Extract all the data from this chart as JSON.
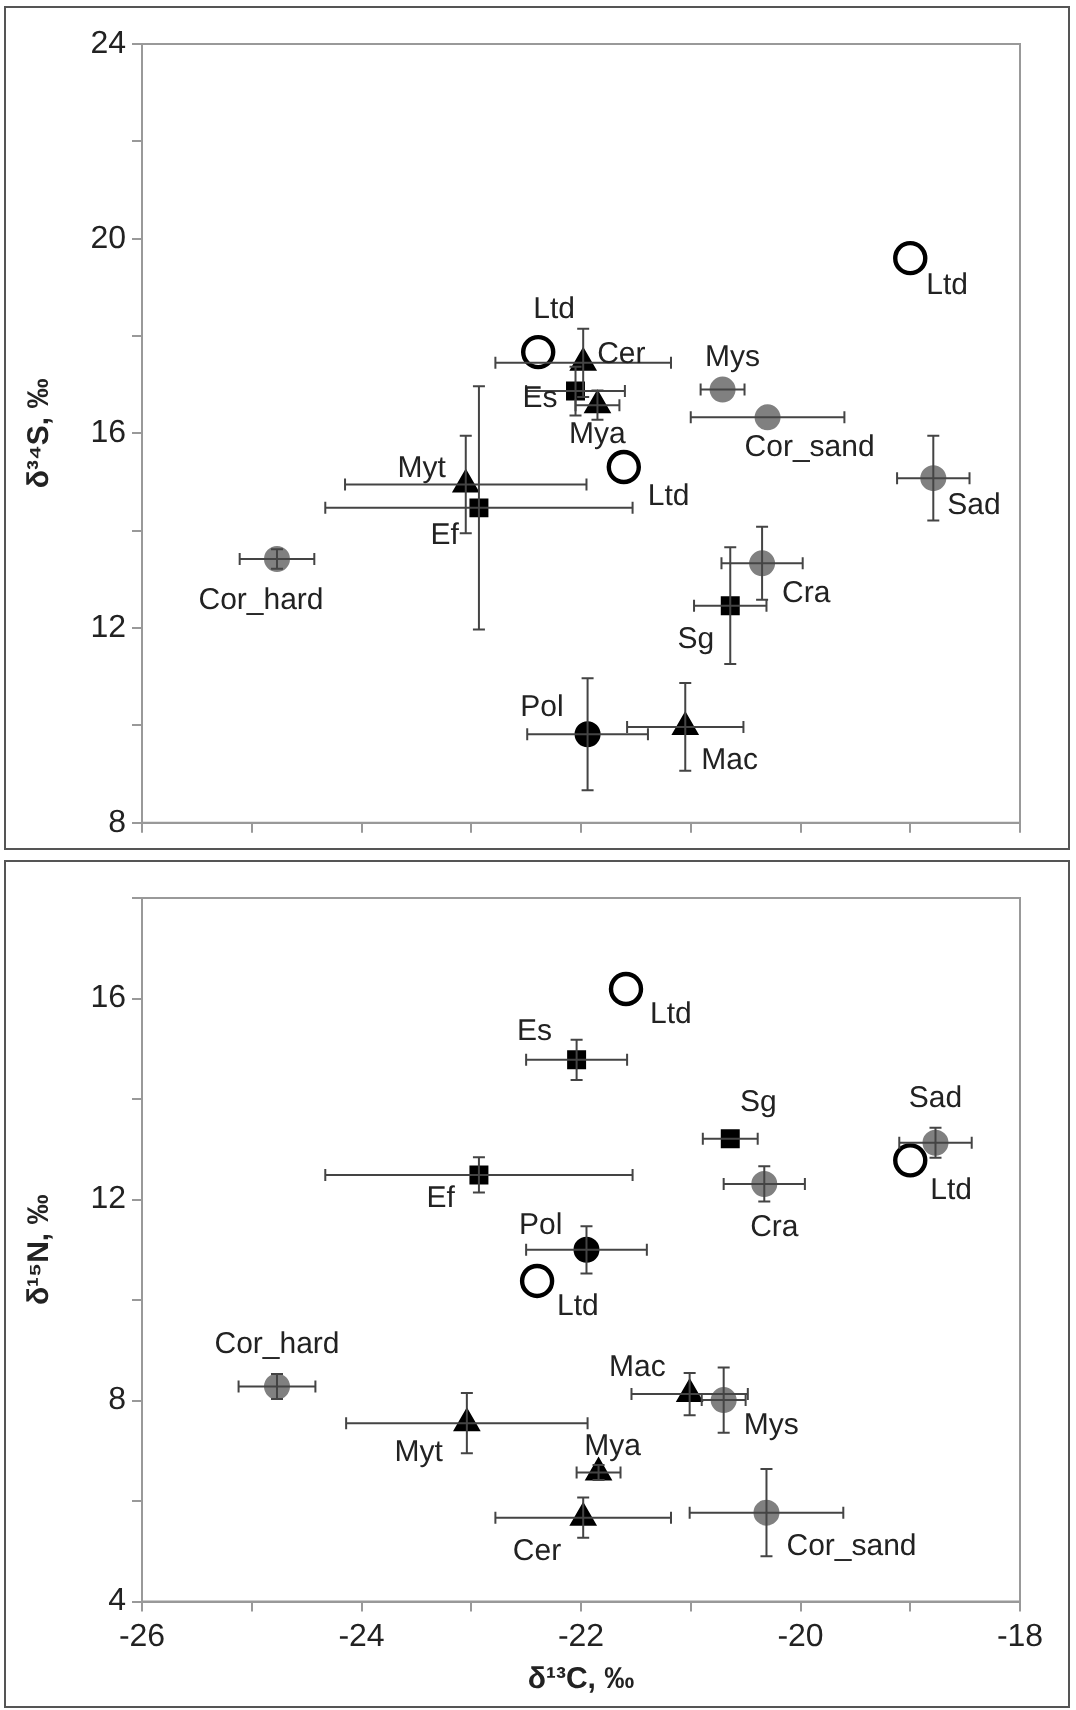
{
  "chart_data": [
    {
      "type": "scatter",
      "ylabel": "δ³⁴S, ‰",
      "xlim": [
        -26,
        -18
      ],
      "ylim": [
        8,
        24
      ],
      "tick_labels": "y",
      "grid": false,
      "legend": false,
      "xticks": [
        -26,
        {
          "value": -25,
          "label": null
        },
        -24,
        {
          "value": -23,
          "label": null
        },
        -22,
        {
          "value": -21,
          "label": null
        },
        -20,
        {
          "value": -19,
          "label": null
        },
        -18
      ],
      "yticks": [
        8,
        {
          "value": 10,
          "label": null
        },
        12,
        {
          "value": 14,
          "label": null
        },
        16,
        {
          "value": 18,
          "label": null
        },
        20,
        {
          "value": 22,
          "label": null
        },
        24
      ],
      "series": [
        {
          "type": "scatter",
          "marker": "square",
          "color": "#000000",
          "x": [
            -22.05,
            -22.93,
            -20.64
          ],
          "values": [
            16.87,
            14.47,
            12.46
          ],
          "xerrors": [
            0.45,
            1.4,
            0.33
          ],
          "errors": [
            0.5,
            2.5,
            1.2
          ],
          "value_labels": [
            "Es",
            "Ef",
            "Sg"
          ]
        },
        {
          "type": "scatter",
          "marker": "triangle",
          "color": "#000000",
          "x": [
            -21.98,
            -21.85,
            -23.05,
            -21.05
          ],
          "values": [
            17.45,
            16.58,
            14.95,
            9.97
          ],
          "xerrors": [
            0.8,
            0.2,
            1.1,
            0.53
          ],
          "errors": [
            0.7,
            0.3,
            1.0,
            0.9
          ],
          "value_labels": [
            "Cer",
            "Mya",
            "Myt",
            "Mac"
          ]
        },
        {
          "type": "scatter",
          "marker": "circle",
          "color": "#000000",
          "x": [
            -21.94
          ],
          "values": [
            9.82
          ],
          "xerrors": [
            0.55
          ],
          "errors": [
            1.15
          ],
          "value_labels": [
            "Pol"
          ]
        },
        {
          "type": "scatter",
          "marker": "circle",
          "color": "#808080",
          "x": [
            -20.71,
            -20.3,
            -18.79,
            -24.77,
            -20.35
          ],
          "values": [
            16.9,
            16.33,
            15.08,
            13.42,
            13.33
          ],
          "xerrors": [
            0.2,
            0.7,
            0.33,
            0.34,
            0.37
          ],
          "errors": [
            null,
            null,
            0.87,
            0.2,
            0.75
          ],
          "value_labels": [
            "Mys",
            "Cor_sand",
            "Sad",
            "Cor_hard",
            "Cra"
          ]
        },
        {
          "type": "scatter",
          "marker": "circle",
          "color": "#ffffff",
          "x": [
            -22.39,
            -19.0,
            -21.61
          ],
          "values": [
            17.67,
            19.6,
            15.31
          ],
          "value_labels": [
            "Ltd",
            "Ltd",
            "Ltd"
          ]
        }
      ]
    },
    {
      "type": "scatter",
      "xlabel": "δ¹³C, ‰",
      "ylabel": "δ¹⁵N, ‰",
      "xlim": [
        -26,
        -18
      ],
      "ylim": [
        4,
        18
      ],
      "grid": false,
      "legend": false,
      "xticks": [
        -26,
        {
          "value": -25,
          "label": null
        },
        -24,
        {
          "value": -23,
          "label": null
        },
        -22,
        {
          "value": -21,
          "label": null
        },
        -20,
        {
          "value": -19,
          "label": null
        },
        -18
      ],
      "yticks": [
        4,
        {
          "value": 6,
          "label": null
        },
        8,
        {
          "value": 10,
          "label": null
        },
        12,
        {
          "value": 14,
          "label": null
        },
        16,
        {
          "value": 18,
          "label": null
        }
      ],
      "series": [
        {
          "type": "scatter",
          "marker": "square",
          "color": "#000000",
          "x": [
            -22.04,
            -22.93,
            -20.64
          ],
          "values": [
            14.78,
            12.49,
            13.21
          ],
          "xerrors": [
            0.46,
            1.4,
            0.25
          ],
          "errors": [
            0.4,
            0.35,
            null
          ],
          "value_labels": [
            "Es",
            "Ef",
            "Sg"
          ]
        },
        {
          "type": "scatter",
          "marker": "triangle",
          "color": "#000000",
          "x": [
            -21.98,
            -21.84,
            -23.04,
            -21.01
          ],
          "values": [
            5.67,
            6.57,
            7.55,
            8.13
          ],
          "xerrors": [
            0.8,
            0.2,
            1.1,
            0.53
          ],
          "errors": [
            0.4,
            0.15,
            0.6,
            0.42
          ],
          "value_labels": [
            "Cer",
            "Mya",
            "Myt",
            "Mac"
          ]
        },
        {
          "type": "scatter",
          "marker": "circle",
          "color": "#000000",
          "x": [
            -21.95
          ],
          "values": [
            11.0
          ],
          "xerrors": [
            0.55
          ],
          "errors": [
            0.47
          ],
          "value_labels": [
            "Pol"
          ]
        },
        {
          "type": "scatter",
          "marker": "circle",
          "color": "#808080",
          "x": [
            -20.7,
            -20.31,
            -18.77,
            -24.77,
            -20.33
          ],
          "values": [
            8.01,
            5.77,
            13.13,
            8.28,
            12.31
          ],
          "xerrors": [
            0.2,
            0.7,
            0.33,
            0.35,
            0.37
          ],
          "errors": [
            0.65,
            0.87,
            0.3,
            0.25,
            0.35
          ],
          "value_labels": [
            "Mys",
            "Cor_sand",
            "Sad",
            "Cor_hard",
            "Cra"
          ]
        },
        {
          "type": "scatter",
          "marker": "circle",
          "color": "#ffffff",
          "x": [
            -21.59,
            -19.0,
            -22.4
          ],
          "values": [
            16.19,
            12.78,
            10.38
          ],
          "value_labels": [
            "Ltd",
            "Ltd",
            "Ltd"
          ]
        }
      ]
    }
  ]
}
